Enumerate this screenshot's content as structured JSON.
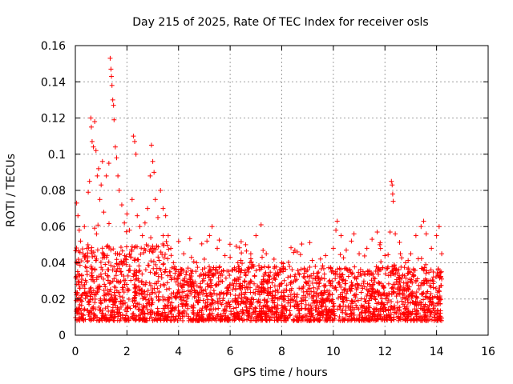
{
  "chart_data": {
    "type": "scatter",
    "title": "Day 215 of 2025, Rate Of TEC Index for receiver osls",
    "xlabel": "GPS time / hours",
    "ylabel": "ROTI / TECUs",
    "xlim": [
      0,
      16
    ],
    "ylim": [
      0,
      0.16
    ],
    "x_ticks": [
      0,
      2,
      4,
      6,
      8,
      10,
      12,
      14,
      16
    ],
    "y_ticks": [
      0,
      0.02,
      0.04,
      0.06,
      0.08,
      0.1,
      0.12,
      0.14,
      0.16
    ],
    "x_tick_labels": [
      "0",
      "2",
      "4",
      "6",
      "8",
      "10",
      "12",
      "14",
      "16"
    ],
    "y_tick_labels": [
      "0",
      "0.02",
      "0.04",
      "0.06",
      "0.08",
      "0.1",
      "0.12",
      "0.14",
      "0.16"
    ],
    "grid": true,
    "marker": "+",
    "color": "#ff0000",
    "series": [
      {
        "name": "ROTI",
        "points": [
          [
            0.05,
            0.073
          ],
          [
            0.1,
            0.066
          ],
          [
            0.15,
            0.058
          ],
          [
            0.2,
            0.052
          ],
          [
            0.3,
            0.045
          ],
          [
            0.35,
            0.06
          ],
          [
            0.45,
            0.048
          ],
          [
            0.5,
            0.079
          ],
          [
            0.55,
            0.085
          ],
          [
            0.6,
            0.12
          ],
          [
            0.62,
            0.115
          ],
          [
            0.65,
            0.107
          ],
          [
            0.7,
            0.104
          ],
          [
            0.75,
            0.118
          ],
          [
            0.8,
            0.102
          ],
          [
            0.85,
            0.088
          ],
          [
            0.9,
            0.092
          ],
          [
            0.95,
            0.075
          ],
          [
            1.0,
            0.083
          ],
          [
            1.05,
            0.096
          ],
          [
            1.1,
            0.068
          ],
          [
            1.2,
            0.088
          ],
          [
            1.3,
            0.095
          ],
          [
            1.35,
            0.153
          ],
          [
            1.38,
            0.147
          ],
          [
            1.4,
            0.143
          ],
          [
            1.42,
            0.138
          ],
          [
            1.45,
            0.13
          ],
          [
            1.48,
            0.127
          ],
          [
            1.5,
            0.119
          ],
          [
            1.55,
            0.104
          ],
          [
            1.6,
            0.098
          ],
          [
            1.65,
            0.088
          ],
          [
            1.7,
            0.08
          ],
          [
            1.8,
            0.072
          ],
          [
            1.9,
            0.062
          ],
          [
            2.0,
            0.067
          ],
          [
            2.1,
            0.058
          ],
          [
            2.2,
            0.075
          ],
          [
            2.25,
            0.11
          ],
          [
            2.3,
            0.107
          ],
          [
            2.35,
            0.1
          ],
          [
            2.4,
            0.066
          ],
          [
            2.5,
            0.06
          ],
          [
            2.6,
            0.055
          ],
          [
            2.7,
            0.062
          ],
          [
            2.8,
            0.07
          ],
          [
            2.9,
            0.088
          ],
          [
            2.95,
            0.105
          ],
          [
            3.0,
            0.096
          ],
          [
            3.05,
            0.09
          ],
          [
            3.1,
            0.075
          ],
          [
            3.2,
            0.065
          ],
          [
            3.3,
            0.08
          ],
          [
            3.4,
            0.07
          ],
          [
            3.5,
            0.066
          ],
          [
            3.6,
            0.055
          ],
          [
            3.7,
            0.048
          ],
          [
            3.8,
            0.04
          ],
          [
            4.2,
            0.045
          ],
          [
            4.5,
            0.043
          ],
          [
            4.7,
            0.04
          ],
          [
            5.0,
            0.042
          ],
          [
            5.1,
            0.052
          ],
          [
            5.2,
            0.055
          ],
          [
            5.3,
            0.06
          ],
          [
            5.5,
            0.048
          ],
          [
            5.8,
            0.044
          ],
          [
            6.0,
            0.043
          ],
          [
            6.3,
            0.04
          ],
          [
            6.6,
            0.05
          ],
          [
            6.8,
            0.045
          ],
          [
            7.0,
            0.055
          ],
          [
            7.2,
            0.061
          ],
          [
            7.4,
            0.045
          ],
          [
            7.7,
            0.042
          ],
          [
            8.0,
            0.04
          ],
          [
            8.3,
            0.038
          ],
          [
            8.6,
            0.046
          ],
          [
            9.0,
            0.036
          ],
          [
            9.3,
            0.038
          ],
          [
            9.7,
            0.044
          ],
          [
            10.0,
            0.048
          ],
          [
            10.1,
            0.058
          ],
          [
            10.15,
            0.063
          ],
          [
            10.3,
            0.055
          ],
          [
            10.5,
            0.047
          ],
          [
            10.7,
            0.052
          ],
          [
            10.8,
            0.056
          ],
          [
            11.0,
            0.045
          ],
          [
            11.3,
            0.048
          ],
          [
            11.5,
            0.053
          ],
          [
            11.7,
            0.057
          ],
          [
            11.8,
            0.05
          ],
          [
            12.0,
            0.044
          ],
          [
            12.2,
            0.057
          ],
          [
            12.25,
            0.085
          ],
          [
            12.28,
            0.083
          ],
          [
            12.3,
            0.078
          ],
          [
            12.32,
            0.074
          ],
          [
            12.4,
            0.056
          ],
          [
            12.6,
            0.045
          ],
          [
            12.8,
            0.04
          ],
          [
            13.0,
            0.045
          ],
          [
            13.2,
            0.055
          ],
          [
            13.4,
            0.06
          ],
          [
            13.5,
            0.063
          ],
          [
            13.6,
            0.056
          ],
          [
            13.8,
            0.048
          ],
          [
            14.0,
            0.055
          ],
          [
            14.1,
            0.06
          ],
          [
            14.2,
            0.045
          ]
        ]
      }
    ]
  }
}
